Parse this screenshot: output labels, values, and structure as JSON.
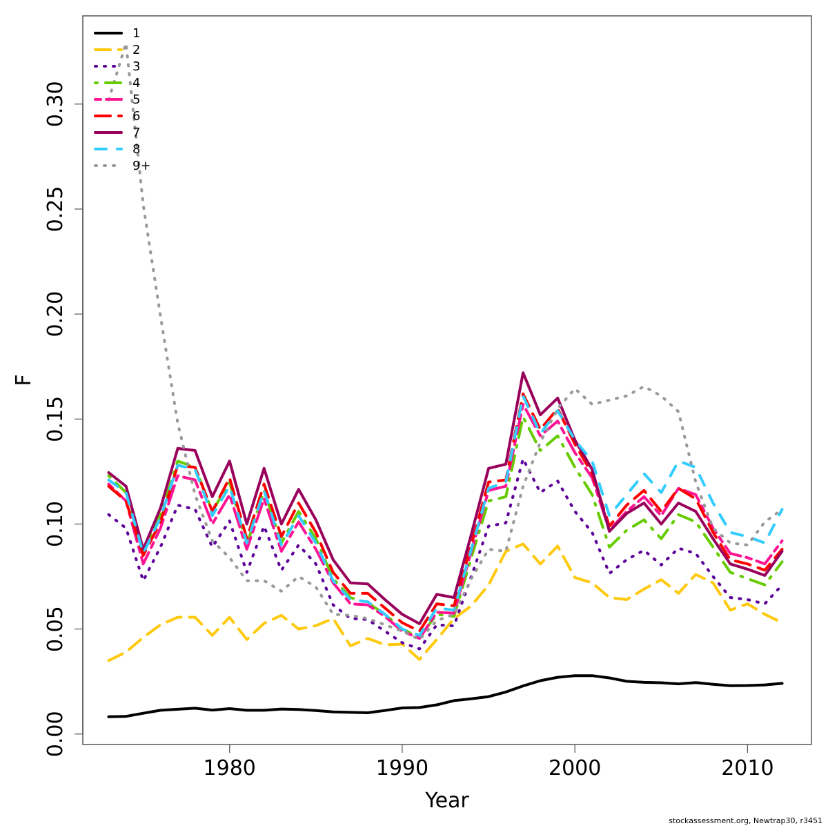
{
  "chart_data": {
    "type": "line",
    "title": "",
    "xlabel": "Year",
    "ylabel": "F",
    "xlim": [
      1971.5,
      2013.7
    ],
    "ylim": [
      -0.005,
      0.342
    ],
    "x_ticks": [
      1980,
      1990,
      2000,
      2010
    ],
    "x_tick_labels": [
      "1980",
      "1990",
      "2000",
      "2010"
    ],
    "y_ticks": [
      0.0,
      0.05,
      0.1,
      0.15,
      0.2,
      0.25,
      0.3
    ],
    "y_tick_labels": [
      "0.00",
      "0.05",
      "0.10",
      "0.15",
      "0.20",
      "0.25",
      "0.30"
    ],
    "grid": false,
    "legend_position": "top-left",
    "x": [
      1973,
      1974,
      1975,
      1976,
      1977,
      1978,
      1979,
      1980,
      1981,
      1982,
      1983,
      1984,
      1985,
      1986,
      1987,
      1988,
      1989,
      1990,
      1991,
      1992,
      1993,
      1994,
      1995,
      1996,
      1997,
      1998,
      1999,
      2000,
      2001,
      2002,
      2003,
      2004,
      2005,
      2006,
      2007,
      2008,
      2009,
      2010,
      2011,
      2012
    ],
    "series": [
      {
        "name": "1",
        "color": "#000000",
        "dash": "solid",
        "values": [
          0.0082,
          0.0084,
          0.0099,
          0.0113,
          0.0118,
          0.0123,
          0.0114,
          0.0121,
          0.0113,
          0.0113,
          0.0119,
          0.0117,
          0.0112,
          0.0105,
          0.0103,
          0.0101,
          0.0112,
          0.0124,
          0.0126,
          0.0139,
          0.0159,
          0.0168,
          0.0178,
          0.02,
          0.0229,
          0.0254,
          0.027,
          0.0278,
          0.0278,
          0.0267,
          0.0251,
          0.0246,
          0.0244,
          0.0239,
          0.0245,
          0.0237,
          0.023,
          0.0231,
          0.0234,
          0.0241
        ]
      },
      {
        "name": "2",
        "color": "#FFC90E",
        "dash": "longdash",
        "values": [
          0.035,
          0.039,
          0.046,
          0.052,
          0.0556,
          0.0556,
          0.047,
          0.0556,
          0.045,
          0.0527,
          0.0565,
          0.05,
          0.0516,
          0.055,
          0.042,
          0.0455,
          0.0425,
          0.0428,
          0.0355,
          0.045,
          0.055,
          0.061,
          0.071,
          0.087,
          0.0905,
          0.081,
          0.0895,
          0.0745,
          0.072,
          0.065,
          0.064,
          0.069,
          0.0735,
          0.067,
          0.076,
          0.072,
          0.059,
          0.062,
          0.057,
          0.053
        ]
      },
      {
        "name": "3",
        "color": "#5C0099",
        "dash": "dotted",
        "values": [
          0.1045,
          0.098,
          0.073,
          0.089,
          0.109,
          0.107,
          0.089,
          0.1015,
          0.077,
          0.099,
          0.078,
          0.09,
          0.081,
          0.0615,
          0.055,
          0.0545,
          0.049,
          0.0435,
          0.0405,
          0.052,
          0.0515,
          0.075,
          0.099,
          0.1005,
          0.131,
          0.115,
          0.1205,
          0.106,
          0.096,
          0.0765,
          0.083,
          0.0875,
          0.0805,
          0.0885,
          0.086,
          0.075,
          0.065,
          0.064,
          0.062,
          0.071
        ]
      },
      {
        "name": "4",
        "color": "#66CC00",
        "dash": "dotdash",
        "values": [
          0.123,
          0.115,
          0.087,
          0.104,
          0.13,
          0.127,
          0.106,
          0.12,
          0.09,
          0.116,
          0.091,
          0.106,
          0.093,
          0.074,
          0.065,
          0.0625,
          0.057,
          0.05,
          0.046,
          0.057,
          0.056,
          0.084,
          0.111,
          0.113,
          0.151,
          0.135,
          0.142,
          0.127,
          0.114,
          0.089,
          0.097,
          0.102,
          0.093,
          0.1045,
          0.101,
          0.089,
          0.077,
          0.074,
          0.071,
          0.082
        ]
      },
      {
        "name": "5",
        "color": "#FF1493",
        "dash": "twodash",
        "values": [
          0.119,
          0.111,
          0.081,
          0.098,
          0.123,
          0.121,
          0.1,
          0.114,
          0.088,
          0.112,
          0.087,
          0.101,
          0.088,
          0.072,
          0.062,
          0.0615,
          0.056,
          0.049,
          0.0455,
          0.058,
          0.0575,
          0.087,
          0.116,
          0.118,
          0.157,
          0.142,
          0.149,
          0.134,
          0.122,
          0.097,
          0.106,
          0.113,
          0.104,
          0.117,
          0.114,
          0.098,
          0.086,
          0.084,
          0.081,
          0.092
        ]
      },
      {
        "name": "6",
        "color": "#FF0000",
        "dash": "longdash",
        "values": [
          0.118,
          0.111,
          0.085,
          0.101,
          0.128,
          0.127,
          0.106,
          0.122,
          0.093,
          0.119,
          0.094,
          0.11,
          0.096,
          0.077,
          0.067,
          0.067,
          0.06,
          0.053,
          0.049,
          0.062,
          0.061,
          0.09,
          0.12,
          0.121,
          0.162,
          0.145,
          0.155,
          0.138,
          0.124,
          0.099,
          0.109,
          0.116,
          0.106,
          0.117,
          0.112,
          0.096,
          0.083,
          0.081,
          0.078,
          0.088
        ]
      },
      {
        "name": "7",
        "color": "#99005C",
        "dash": "solid",
        "values": [
          0.1245,
          0.118,
          0.088,
          0.1076,
          0.136,
          0.135,
          0.113,
          0.13,
          0.1,
          0.1265,
          0.1,
          0.1165,
          0.102,
          0.083,
          0.072,
          0.0715,
          0.064,
          0.057,
          0.0525,
          0.0665,
          0.065,
          0.095,
          0.1265,
          0.1285,
          0.172,
          0.152,
          0.16,
          0.14,
          0.126,
          0.0965,
          0.105,
          0.11,
          0.1,
          0.11,
          0.106,
          0.093,
          0.081,
          0.0785,
          0.0755,
          0.087
        ]
      },
      {
        "name": "8",
        "color": "#33CCFF",
        "dash": "dashed",
        "values": [
          0.121,
          0.115,
          0.086,
          0.103,
          0.128,
          0.126,
          0.104,
          0.118,
          0.091,
          0.116,
          0.09,
          0.104,
          0.091,
          0.073,
          0.064,
          0.063,
          0.057,
          0.05,
          0.047,
          0.06,
          0.059,
          0.088,
          0.117,
          0.12,
          0.161,
          0.143,
          0.154,
          0.14,
          0.13,
          0.104,
          0.114,
          0.124,
          0.115,
          0.13,
          0.127,
          0.11,
          0.096,
          0.094,
          0.091,
          0.107
        ]
      },
      {
        "name": "9+",
        "color": "#999999",
        "dash": "dotted",
        "values": [
          0.302,
          0.329,
          0.252,
          0.199,
          0.148,
          0.114,
          0.092,
          0.084,
          0.073,
          0.073,
          0.068,
          0.075,
          0.07,
          0.057,
          0.0565,
          0.055,
          0.052,
          0.049,
          0.045,
          0.054,
          0.057,
          0.074,
          0.088,
          0.087,
          0.118,
          0.139,
          0.155,
          0.1645,
          0.157,
          0.159,
          0.161,
          0.1655,
          0.161,
          0.1535,
          0.12,
          0.098,
          0.091,
          0.09,
          0.101,
          0.107
        ]
      }
    ]
  },
  "footer": {
    "text": "stockassessment.org, Newtrap30, r3451"
  }
}
